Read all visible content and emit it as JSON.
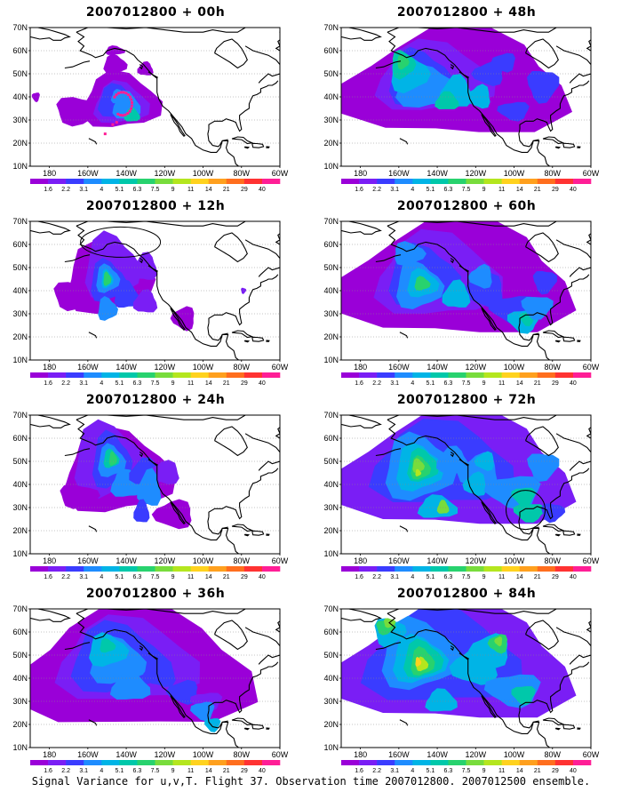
{
  "panels": [
    {
      "title_base": "2007012800",
      "lead": "+ 00h",
      "column": "left",
      "row": 1
    },
    {
      "title_base": "2007012800",
      "lead": "+ 48h",
      "column": "right",
      "row": 1
    },
    {
      "title_base": "2007012800",
      "lead": "+ 12h",
      "column": "left",
      "row": 2
    },
    {
      "title_base": "2007012800",
      "lead": "+ 60h",
      "column": "right",
      "row": 2
    },
    {
      "title_base": "2007012800",
      "lead": "+ 24h",
      "column": "left",
      "row": 3
    },
    {
      "title_base": "2007012800",
      "lead": "+ 72h",
      "column": "right",
      "row": 3
    },
    {
      "title_base": "2007012800",
      "lead": "+ 36h",
      "column": "left",
      "row": 4
    },
    {
      "title_base": "2007012800",
      "lead": "+ 84h",
      "column": "right",
      "row": 4
    }
  ],
  "axes": {
    "lat_labels": [
      "10N",
      "20N",
      "30N",
      "40N",
      "50N",
      "60N",
      "70N"
    ],
    "lon_labels": [
      "180",
      "160W",
      "140W",
      "120W",
      "100W",
      "80W",
      "60W"
    ]
  },
  "colorbar": {
    "labels": [
      "1.6",
      "2.2",
      "3.1",
      "4",
      "5.1",
      "6.3",
      "7.5",
      "9",
      "11",
      "14",
      "21",
      "29",
      "40"
    ],
    "colors": [
      "#9a00d8",
      "#7a1ef5",
      "#3a3cff",
      "#1e8cff",
      "#00b4e6",
      "#00c8aa",
      "#28d26e",
      "#78dc3c",
      "#b4e61e",
      "#ffd21e",
      "#ffa01e",
      "#ff6e1e",
      "#ff3232",
      "#ff1e96"
    ]
  },
  "caption": "Signal Variance for u,v,T. Flight 37. Observation time 2007012800. 2007012500 ensemble."
}
